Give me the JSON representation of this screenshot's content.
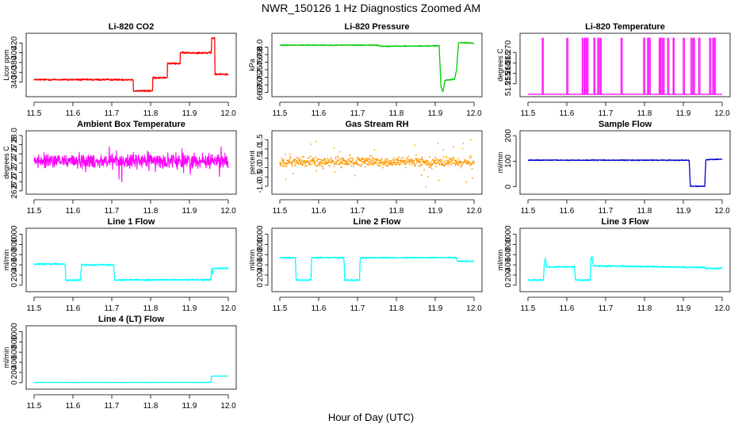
{
  "title": "NWR_150126  1 Hz Diagnostics Zoomed AM",
  "xlabel": "Hour of Day (UTC)",
  "chart_data": [
    {
      "type": "line",
      "title": "Li-820 CO2",
      "ylabel": "Licor ppm",
      "color": "#ff0000",
      "xlim": [
        11.5,
        12.0
      ],
      "ylim": [
        315,
        435
      ],
      "xticks": [
        "11.5",
        "11.6",
        "11.7",
        "11.8",
        "11.9",
        "12.0"
      ],
      "yticks": [
        "340",
        "360",
        "380",
        "400",
        "420"
      ],
      "noise": 1.5,
      "x": [
        11.5,
        11.755,
        11.755,
        11.805,
        11.805,
        11.843,
        11.843,
        11.876,
        11.876,
        11.957,
        11.957,
        11.965,
        11.965,
        12.0
      ],
      "y": [
        345,
        345,
        322,
        322,
        349,
        349,
        378,
        378,
        400,
        400,
        430,
        430,
        356,
        356
      ]
    },
    {
      "type": "line",
      "title": "Li-820 Pressure",
      "ylabel": "kPa",
      "color": "#00cc00",
      "xlim": [
        11.5,
        12.0
      ],
      "ylim": [
        66.75,
        68.3
      ],
      "xticks": [
        "11.5",
        "11.6",
        "11.7",
        "11.8",
        "11.9",
        "12.0"
      ],
      "yticks": [
        "66.8",
        "67.0",
        "67.2",
        "67.4",
        "67.6",
        "67.8",
        "68.0"
      ],
      "noise": 0.01,
      "x": [
        11.5,
        11.75,
        11.76,
        11.91,
        11.915,
        11.92,
        11.925,
        11.95,
        11.955,
        11.96,
        11.963,
        12.0
      ],
      "y": [
        68.05,
        68.05,
        68.02,
        68.03,
        66.95,
        66.82,
        67.12,
        67.15,
        67.4,
        68.1,
        68.12,
        68.1
      ]
    },
    {
      "type": "line",
      "title": "Li-820 Temperature",
      "ylabel": "degrees C",
      "color": "#ff00ff",
      "xlim": [
        11.5,
        12.0
      ],
      "ylim": [
        51.25,
        51.278
      ],
      "xticks": [
        "11.5",
        "11.6",
        "11.7",
        "11.8",
        "11.9",
        "12.0"
      ],
      "yticks": [
        "51.255",
        "51.260",
        "51.265",
        "51.270"
      ],
      "baseline": 51.25,
      "high": 51.277,
      "spikes": [
        11.537,
        11.6,
        11.64,
        11.646,
        11.652,
        11.67,
        11.68,
        11.686,
        11.74,
        11.798,
        11.808,
        11.812,
        11.838,
        11.842,
        11.848,
        11.86,
        11.874,
        11.9,
        11.92,
        11.926,
        11.94,
        11.968,
        11.976,
        11.98
      ]
    },
    {
      "type": "line",
      "title": "Ambient Box Temperature",
      "ylabel": "degrees C",
      "color": "#ff00ff",
      "xlim": [
        11.5,
        12.0
      ],
      "ylim": [
        26.78,
        28.05
      ],
      "xticks": [
        "11.5",
        "11.6",
        "11.7",
        "11.8",
        "11.9",
        "12.0"
      ],
      "yticks": [
        "26.8",
        "27.0",
        "27.2",
        "27.4",
        "27.6",
        "27.8",
        "28.0"
      ],
      "center": 27.45,
      "noise": 0.13,
      "x": [
        11.5,
        12.0
      ],
      "y": [
        27.45,
        27.45
      ]
    },
    {
      "type": "scatter",
      "title": "Gas Stream RH",
      "ylabel": "percent",
      "color": "#ff9900",
      "xlim": [
        11.5,
        12.0
      ],
      "ylim": [
        -1.3,
        1.85
      ],
      "xticks": [
        "11.5",
        "11.6",
        "11.7",
        "11.8",
        "11.9",
        "12.0"
      ],
      "yticks": [
        "-1.0",
        "-0.5",
        "0.0",
        "0.5",
        "1.0",
        "1.5"
      ],
      "center": 0.3,
      "noise": 0.22,
      "x": [
        11.5,
        12.0
      ],
      "y": [
        0.3,
        0.3
      ]
    },
    {
      "type": "line",
      "title": "Sample Flow",
      "ylabel": "ml/min",
      "color": "#0000cc",
      "xlim": [
        11.5,
        12.0
      ],
      "ylim": [
        -20,
        210
      ],
      "xticks": [
        "11.5",
        "11.6",
        "11.7",
        "11.8",
        "11.9",
        "12.0"
      ],
      "yticks": [
        "0",
        "100",
        "200"
      ],
      "noise": 1.5,
      "x": [
        11.5,
        11.915,
        11.918,
        11.955,
        11.958,
        12.0
      ],
      "y": [
        104,
        104,
        2,
        2,
        106,
        108
      ]
    },
    {
      "type": "line",
      "title": "Line 1 Flow",
      "ylabel": "ml/min",
      "color": "#00ffff",
      "xlim": [
        11.5,
        12.0
      ],
      "ylim": [
        -80,
        1070
      ],
      "xticks": [
        "11.5",
        "11.6",
        "11.7",
        "11.8",
        "11.9",
        "12.0"
      ],
      "yticks": [
        "0",
        "200",
        "400",
        "600",
        "800",
        "1000"
      ],
      "noise": 12,
      "x": [
        11.5,
        11.58,
        11.582,
        11.62,
        11.622,
        11.705,
        11.707,
        11.955,
        11.957,
        11.96,
        11.962,
        12.0
      ],
      "y": [
        415,
        415,
        100,
        100,
        400,
        400,
        105,
        105,
        330,
        220,
        330,
        330
      ]
    },
    {
      "type": "line",
      "title": "Line 2 Flow",
      "ylabel": "ml/min",
      "color": "#00ffff",
      "xlim": [
        11.5,
        12.0
      ],
      "ylim": [
        -80,
        1070
      ],
      "xticks": [
        "11.5",
        "11.6",
        "11.7",
        "11.8",
        "11.9",
        "12.0"
      ],
      "yticks": [
        "0",
        "200",
        "400",
        "600",
        "800",
        "1000"
      ],
      "noise": 10,
      "x": [
        11.5,
        11.54,
        11.542,
        11.58,
        11.582,
        11.665,
        11.667,
        11.705,
        11.707,
        11.955,
        11.957,
        12.0
      ],
      "y": [
        540,
        540,
        100,
        100,
        540,
        540,
        100,
        100,
        540,
        540,
        470,
        470
      ]
    },
    {
      "type": "line",
      "title": "Line 3 Flow",
      "ylabel": "ml/min",
      "color": "#00ffff",
      "xlim": [
        11.5,
        12.0
      ],
      "ylim": [
        -80,
        1070
      ],
      "xticks": [
        "11.5",
        "11.6",
        "11.7",
        "11.8",
        "11.9",
        "12.0"
      ],
      "yticks": [
        "0",
        "200",
        "400",
        "600",
        "800",
        "1000"
      ],
      "noise": 12,
      "x": [
        11.5,
        11.54,
        11.542,
        11.545,
        11.548,
        11.62,
        11.622,
        11.66,
        11.662,
        11.665,
        11.668,
        11.955,
        11.957,
        12.0
      ],
      "y": [
        100,
        100,
        420,
        520,
        360,
        360,
        100,
        100,
        520,
        560,
        380,
        350,
        330,
        330
      ]
    },
    {
      "type": "line",
      "title": "Line 4 (LT) Flow",
      "ylabel": "ml/min",
      "color": "#00ffff",
      "xlim": [
        11.5,
        12.0
      ],
      "ylim": [
        -80,
        1070
      ],
      "xticks": [
        "11.5",
        "11.6",
        "11.7",
        "11.8",
        "11.9",
        "12.0"
      ],
      "yticks": [
        "0",
        "200",
        "400",
        "600",
        "800",
        "1000"
      ],
      "noise": 2,
      "x": [
        11.5,
        11.955,
        11.957,
        12.0
      ],
      "y": [
        5,
        5,
        130,
        130
      ]
    }
  ]
}
